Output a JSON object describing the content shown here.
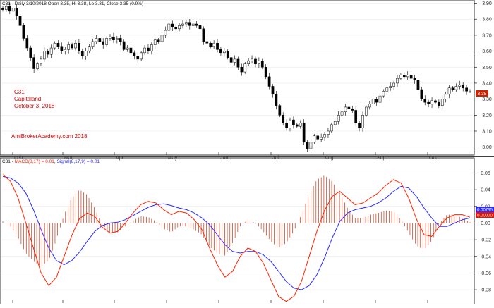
{
  "price_panel": {
    "header": "C31 - Daily 3/10/2018 Open 3.35, Hi 3.38, Lo 3.31, Close 3.35 (0.9%)",
    "annotation_lines": [
      "C31",
      "Capitaland",
      "October 3, 2018"
    ],
    "watermark": "AmiBrokerAcademy.com  2018",
    "last_price_label": "3.35",
    "last_price_color": "#cc2200",
    "up_candle_color": "#ffffff",
    "down_candle_color": "#000000",
    "annotation_color": "#cc0000"
  },
  "macd_panel": {
    "header_prefix": "C31 - ",
    "macd_label": "MACD(8,17) = 0.01",
    "separator": ", ",
    "signal_label": "Signal(8,17,9) = 0.01",
    "macd_value_label": "0.00735",
    "histogram_label": "0.00000",
    "macd_color": "#ff2200",
    "signal_color": "#2a2aff",
    "histogram_color": "#cc3311"
  },
  "chart_data": [
    {
      "type": "candlestick",
      "title": "C31 - Daily 3/10/2018 Open 3.35, Hi 3.38, Lo 3.31, Close 3.35 (0.9%)",
      "ylim": [
        2.95,
        3.92
      ],
      "y_ticks": [
        "3.90",
        "3.80",
        "3.70",
        "3.60",
        "3.50",
        "3.40",
        "3.30",
        "3.20",
        "3.10",
        "3.00"
      ],
      "x_ticks": [
        "Feb",
        "Mar",
        "Apr",
        "May",
        "Jun",
        "Jul",
        "Aug",
        "Sep",
        "Oct"
      ],
      "closes": [
        3.86,
        3.88,
        3.85,
        3.87,
        3.82,
        3.76,
        3.68,
        3.62,
        3.56,
        3.49,
        3.52,
        3.55,
        3.6,
        3.58,
        3.62,
        3.65,
        3.63,
        3.6,
        3.61,
        3.64,
        3.62,
        3.65,
        3.6,
        3.57,
        3.6,
        3.63,
        3.66,
        3.68,
        3.66,
        3.64,
        3.68,
        3.69,
        3.67,
        3.68,
        3.66,
        3.61,
        3.62,
        3.59,
        3.57,
        3.55,
        3.59,
        3.62,
        3.6,
        3.64,
        3.67,
        3.66,
        3.7,
        3.73,
        3.77,
        3.75,
        3.74,
        3.76,
        3.77,
        3.78,
        3.76,
        3.77,
        3.76,
        3.74,
        3.66,
        3.65,
        3.63,
        3.65,
        3.61,
        3.59,
        3.6,
        3.56,
        3.53,
        3.55,
        3.5,
        3.47,
        3.52,
        3.54,
        3.55,
        3.52,
        3.54,
        3.5,
        3.44,
        3.38,
        3.33,
        3.26,
        3.2,
        3.15,
        3.12,
        3.17,
        3.14,
        3.13,
        3.15,
        3.03,
        2.99,
        3.03,
        3.07,
        3.05,
        3.06,
        3.08,
        3.1,
        3.14,
        3.16,
        3.2,
        3.22,
        3.25,
        3.24,
        3.23,
        3.15,
        3.12,
        3.2,
        3.25,
        3.27,
        3.3,
        3.28,
        3.32,
        3.35,
        3.37,
        3.38,
        3.4,
        3.43,
        3.45,
        3.44,
        3.45,
        3.43,
        3.42,
        3.36,
        3.3,
        3.28,
        3.27,
        3.29,
        3.28,
        3.26,
        3.3,
        3.33,
        3.37,
        3.36,
        3.38,
        3.39,
        3.37,
        3.35,
        3.35
      ]
    },
    {
      "type": "line",
      "title": "MACD(8,17) = 0.01, Signal(8,17,9) = 0.01",
      "ylim": [
        -0.096,
        0.068
      ],
      "y_ticks": [
        "0.06",
        "0.04",
        "0.02",
        "0.00",
        "-0.02",
        "-0.04",
        "-0.06",
        "-0.08"
      ],
      "x_ticks": [
        "Feb",
        "Mar",
        "Apr",
        "May",
        "Jun",
        "Jul",
        "Aug",
        "Sep",
        "Oct"
      ],
      "series": [
        {
          "name": "MACD(8,17)",
          "values": [
            0.058,
            0.05,
            0.03,
            0.0,
            -0.03,
            -0.06,
            -0.075,
            -0.065,
            -0.04,
            -0.015,
            0.005,
            0.012,
            0.008,
            -0.005,
            -0.012,
            -0.01,
            0.0,
            0.012,
            0.022,
            0.026,
            0.024,
            0.016,
            0.01,
            0.014,
            0.012,
            0.004,
            -0.008,
            -0.03,
            -0.05,
            -0.065,
            -0.058,
            -0.04,
            -0.03,
            -0.034,
            -0.048,
            -0.068,
            -0.088,
            -0.094,
            -0.088,
            -0.07,
            -0.04,
            -0.01,
            0.015,
            0.032,
            0.038,
            0.03,
            0.022,
            0.024,
            0.03,
            0.036,
            0.045,
            0.052,
            0.048,
            0.03,
            0.005,
            -0.014,
            -0.016,
            -0.004,
            0.006,
            0.01,
            0.01,
            0.007
          ]
        },
        {
          "name": "Signal(8,17,9)",
          "values": [
            0.056,
            0.054,
            0.048,
            0.036,
            0.016,
            -0.008,
            -0.03,
            -0.045,
            -0.05,
            -0.045,
            -0.035,
            -0.022,
            -0.01,
            -0.003,
            0.0,
            0.001,
            0.004,
            0.009,
            0.014,
            0.019,
            0.022,
            0.023,
            0.021,
            0.018,
            0.016,
            0.012,
            0.006,
            -0.002,
            -0.014,
            -0.026,
            -0.034,
            -0.036,
            -0.034,
            -0.034,
            -0.038,
            -0.046,
            -0.058,
            -0.07,
            -0.078,
            -0.08,
            -0.075,
            -0.062,
            -0.042,
            -0.018,
            0.002,
            0.012,
            0.016,
            0.018,
            0.02,
            0.024,
            0.03,
            0.038,
            0.044,
            0.042,
            0.032,
            0.018,
            0.006,
            -0.004,
            -0.004,
            0.0,
            0.004,
            0.006
          ]
        },
        {
          "name": "Histogram",
          "values": [
            0.002,
            -0.004,
            -0.018,
            -0.036,
            -0.046,
            -0.052,
            -0.045,
            -0.02,
            0.01,
            0.03,
            0.04,
            0.034,
            0.018,
            -0.002,
            -0.012,
            -0.011,
            -0.004,
            0.003,
            0.008,
            0.007,
            0.002,
            -0.007,
            -0.011,
            -0.004,
            -0.004,
            -0.008,
            -0.014,
            -0.028,
            -0.036,
            -0.039,
            -0.024,
            -0.004,
            0.004,
            0.0,
            -0.01,
            -0.022,
            -0.03,
            -0.024,
            -0.01,
            0.01,
            0.035,
            0.052,
            0.057,
            0.05,
            0.036,
            0.018,
            0.006,
            0.006,
            0.01,
            0.012,
            0.015,
            0.014,
            0.004,
            -0.012,
            -0.027,
            -0.032,
            -0.022,
            0.0,
            0.01,
            0.01,
            0.006,
            0.001
          ]
        }
      ]
    }
  ]
}
